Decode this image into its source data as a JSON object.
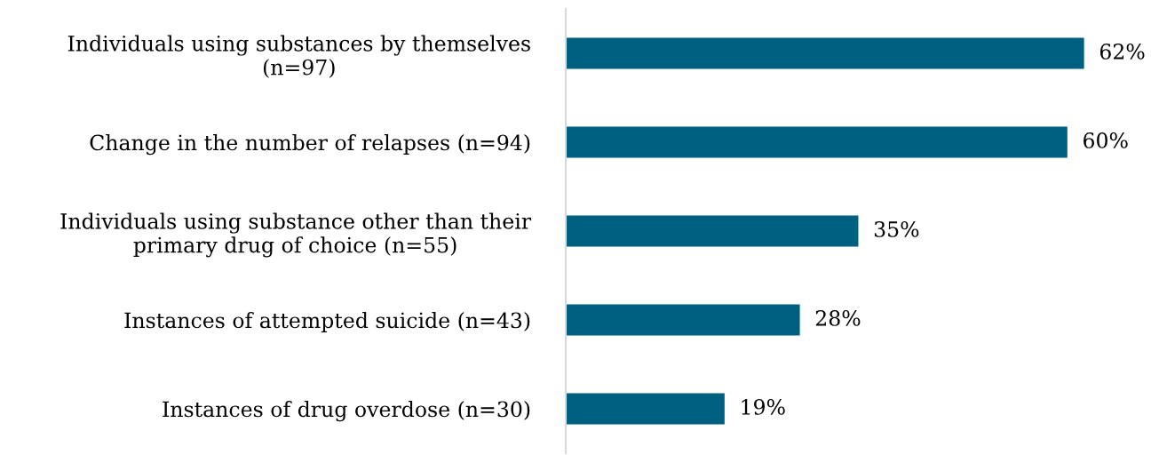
{
  "chart_data": {
    "type": "bar",
    "orientation": "horizontal",
    "categories": [
      "Individuals using substances by themselves\n(n=97)",
      "Change in the number of relapses (n=94)",
      "Individuals using substance other than their\nprimary drug of choice (n=55)",
      "Instances of attempted suicide (n=43)",
      "Instances of drug overdose (n=30)"
    ],
    "values": [
      62,
      60,
      35,
      28,
      19
    ],
    "color": "#00607f",
    "value_labels": [
      "62%",
      "60%",
      "35%",
      "28%",
      "19%"
    ],
    "grid": false,
    "legend": false
  }
}
